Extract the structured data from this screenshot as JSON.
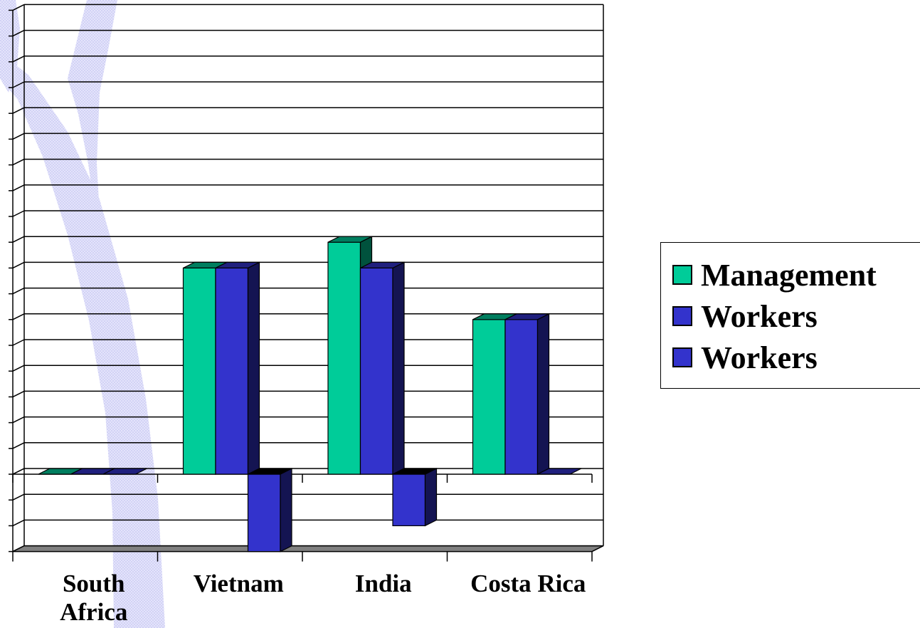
{
  "chart_data": {
    "type": "bar",
    "title": "",
    "xlabel": "",
    "ylabel": "",
    "categories": [
      "South Africa",
      "Vietnam",
      "India",
      "Costa Rica"
    ],
    "category_lines": [
      [
        "South",
        "Africa"
      ],
      [
        "Vietnam"
      ],
      [
        "India"
      ],
      [
        "Costa Rica"
      ]
    ],
    "ylim": [
      -3,
      18
    ],
    "gridlines": [
      -3,
      -2,
      -1,
      0,
      1,
      2,
      3,
      4,
      5,
      6,
      7,
      8,
      9,
      10,
      11,
      12,
      13,
      14,
      15,
      16,
      17,
      18
    ],
    "grid": true,
    "three_d": true,
    "legend_position": "right",
    "series": [
      {
        "name": "Management",
        "color": "#00cc99",
        "values": [
          0,
          8,
          9,
          6
        ]
      },
      {
        "name": "Workers",
        "color": "#3333cc",
        "values": [
          0,
          8,
          8,
          6
        ]
      },
      {
        "name": "Workers",
        "color": "#3333cc",
        "values": [
          0,
          -3,
          -2,
          0
        ]
      }
    ]
  }
}
